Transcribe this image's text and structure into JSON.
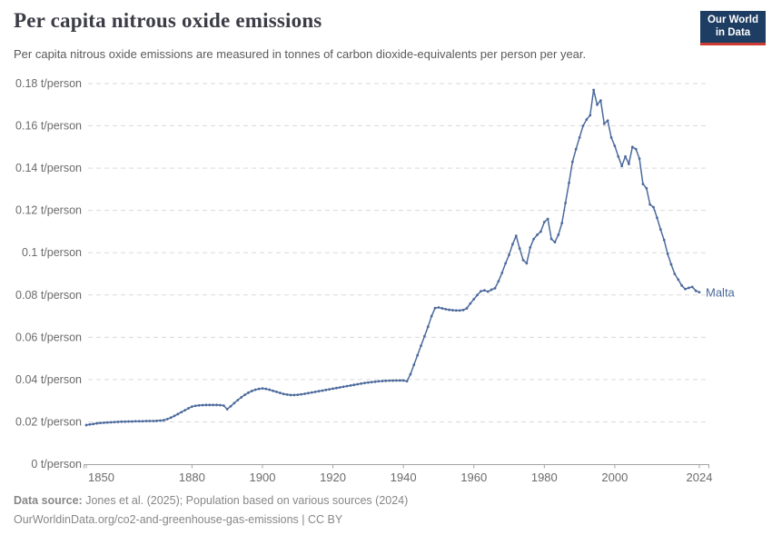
{
  "header": {
    "title": "Per capita nitrous oxide emissions",
    "subtitle": "Per capita nitrous oxide emissions are measured in tonnes of carbon dioxide-equivalents per person per year.",
    "logo": {
      "line1": "Our World",
      "line2": "in Data",
      "bg_color": "#1d3d63",
      "accent_color": "#cc3c33"
    }
  },
  "footer": {
    "source_label": "Data source:",
    "source_text": " Jones et al. (2025); Population based on various sources (2024)",
    "link_line": "OurWorldinData.org/co2-and-greenhouse-gas-emissions | CC BY"
  },
  "chart_data": {
    "type": "line",
    "title": "Per capita nitrous oxide emissions",
    "unit": "t/person",
    "xlim": [
      1850,
      2024
    ],
    "ylim": [
      0,
      0.18
    ],
    "grid": "horizontal-dashed",
    "legend_position": "end-of-line-label",
    "x_ticks": [
      1850,
      1880,
      1900,
      1920,
      1940,
      1960,
      1980,
      2000,
      2024
    ],
    "y_ticks": [
      0,
      0.02,
      0.04,
      0.06,
      0.08,
      0.1,
      0.12,
      0.14,
      0.16,
      0.18
    ],
    "y_tick_labels": [
      "0 t/person",
      "0.02 t/person",
      "0.04 t/person",
      "0.06 t/person",
      "0.08 t/person",
      "0.1 t/person",
      "0.12 t/person",
      "0.14 t/person",
      "0.16 t/person",
      "0.18 t/person"
    ],
    "series": [
      {
        "name": "Malta",
        "color": "#4C6A9C",
        "year_start": 1850,
        "year_end": 2024,
        "values": [
          0.0185,
          0.0188,
          0.019,
          0.0193,
          0.0195,
          0.0196,
          0.0197,
          0.0198,
          0.0199,
          0.02,
          0.0201,
          0.0201,
          0.0202,
          0.0202,
          0.0203,
          0.0203,
          0.0203,
          0.0204,
          0.0204,
          0.0204,
          0.0205,
          0.0206,
          0.0208,
          0.0213,
          0.022,
          0.0228,
          0.0237,
          0.0246,
          0.0255,
          0.0264,
          0.0272,
          0.0276,
          0.0278,
          0.0279,
          0.028,
          0.028,
          0.028,
          0.028,
          0.0279,
          0.0277,
          0.026,
          0.0274,
          0.0289,
          0.0303,
          0.0316,
          0.0328,
          0.0338,
          0.0346,
          0.0352,
          0.0356,
          0.0358,
          0.0356,
          0.0352,
          0.0347,
          0.0342,
          0.0337,
          0.0332,
          0.0329,
          0.0327,
          0.0327,
          0.0328,
          0.033,
          0.0333,
          0.0336,
          0.0339,
          0.0342,
          0.0345,
          0.0348,
          0.0351,
          0.0354,
          0.0357,
          0.036,
          0.0363,
          0.0366,
          0.0369,
          0.0372,
          0.0375,
          0.0378,
          0.0381,
          0.0384,
          0.0386,
          0.0388,
          0.039,
          0.0392,
          0.0393,
          0.0394,
          0.0395,
          0.0395,
          0.0396,
          0.0396,
          0.0396,
          0.0392,
          0.0425,
          0.047,
          0.0515,
          0.056,
          0.0605,
          0.065,
          0.07,
          0.0738,
          0.0741,
          0.0737,
          0.0733,
          0.073,
          0.0728,
          0.0727,
          0.0727,
          0.0729,
          0.0737,
          0.076,
          0.078,
          0.08,
          0.0818,
          0.0822,
          0.0816,
          0.0825,
          0.0832,
          0.0865,
          0.0905,
          0.095,
          0.099,
          0.104,
          0.108,
          0.102,
          0.0965,
          0.095,
          0.1025,
          0.1065,
          0.1085,
          0.11,
          0.1145,
          0.116,
          0.1065,
          0.105,
          0.1085,
          0.114,
          0.1235,
          0.133,
          0.143,
          0.149,
          0.1545,
          0.16,
          0.163,
          0.165,
          0.177,
          0.17,
          0.172,
          0.161,
          0.1625,
          0.1545,
          0.1505,
          0.1455,
          0.141,
          0.1455,
          0.142,
          0.15,
          0.149,
          0.1445,
          0.1325,
          0.1305,
          0.1228,
          0.1215,
          0.1165,
          0.111,
          0.106,
          0.0995,
          0.0945,
          0.09,
          0.0873,
          0.0845,
          0.0828,
          0.0834,
          0.0838,
          0.082,
          0.0813
        ]
      }
    ]
  }
}
